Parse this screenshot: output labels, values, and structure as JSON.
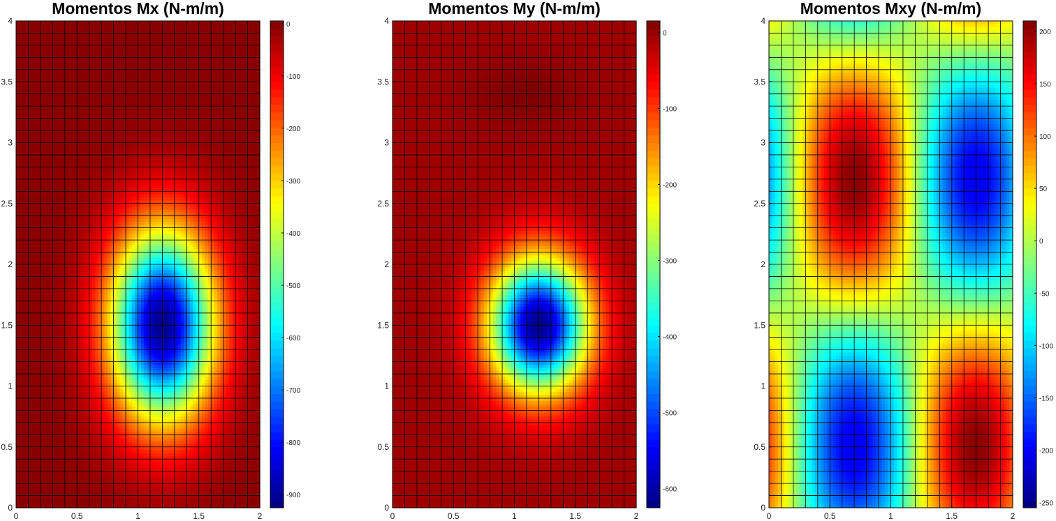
{
  "chart_data": [
    {
      "type": "heatmap",
      "title": "Momentos Mx (N-m/m)",
      "colormap": "jet",
      "x_range": [
        0,
        2
      ],
      "y_range": [
        0,
        4
      ],
      "x_ticks": [
        "0",
        "0.5",
        "1",
        "1.5",
        "2"
      ],
      "y_ticks": [
        "0",
        "0.5",
        "1",
        "1.5",
        "2",
        "2.5",
        "3",
        "3.5",
        "4"
      ],
      "mesh": {
        "nx": 20,
        "ny": 40,
        "color": "#000000"
      },
      "field": {
        "kind": "peak",
        "cx": 1.2,
        "cy": 1.5,
        "sx": 0.42,
        "sy": 0.78,
        "floor": -5,
        "peak": -915
      },
      "colorbar": {
        "min": -925,
        "max": 5,
        "ticks": [
          0,
          -100,
          -200,
          -300,
          -400,
          -500,
          -600,
          -700,
          -800,
          -900
        ],
        "tick_labels": [
          "0",
          "-100",
          "-200",
          "-300",
          "-400",
          "-500",
          "-600",
          "-700",
          "-800",
          "-900"
        ]
      }
    },
    {
      "type": "heatmap",
      "title": "Momentos My (N-m/m)",
      "colormap": "jet",
      "x_range": [
        0,
        2
      ],
      "y_range": [
        0,
        4
      ],
      "x_ticks": [
        "0",
        "0.5",
        "1",
        "1.5",
        "2"
      ],
      "y_ticks": [
        "0",
        "0.5",
        "1",
        "1.5",
        "2",
        "2.5",
        "3",
        "3.5",
        "4"
      ],
      "mesh": {
        "nx": 20,
        "ny": 40,
        "color": "#000000"
      },
      "field": {
        "kind": "peak",
        "cx": 1.2,
        "cy": 1.5,
        "sx": 0.4,
        "sy": 0.55,
        "floor": -5,
        "peak": -620,
        "bump": {
          "cx": 1.1,
          "cy": 3.4,
          "sx": 0.45,
          "sy": 0.3,
          "amp": 20
        }
      },
      "colorbar": {
        "min": -625,
        "max": 15,
        "ticks": [
          0,
          -100,
          -200,
          -300,
          -400,
          -500,
          -600
        ],
        "tick_labels": [
          "0",
          "-100",
          "-200",
          "-300",
          "-400",
          "-500",
          "-600"
        ]
      }
    },
    {
      "type": "heatmap",
      "title": "Momentos Mxy (N-m/m)",
      "colormap": "jet",
      "x_range": [
        0,
        2
      ],
      "y_range": [
        0,
        4
      ],
      "x_ticks": [
        "0",
        "0.5",
        "1",
        "1.5",
        "2"
      ],
      "y_ticks": [
        "0",
        "0.5",
        "1",
        "1.5",
        "2",
        "2.5",
        "3",
        "3.5",
        "4"
      ],
      "mesh": {
        "nx": 20,
        "ny": 40,
        "color": "#000000"
      },
      "field": {
        "kind": "twist",
        "cx": 1.2,
        "cy": 1.6,
        "amp": 205
      },
      "colorbar": {
        "min": -255,
        "max": 210,
        "ticks": [
          200,
          150,
          100,
          50,
          0,
          -50,
          -100,
          -150,
          -200,
          -250
        ],
        "tick_labels": [
          "200",
          "150",
          "100",
          "50",
          "0",
          "-50",
          "-100",
          "-150",
          "-200",
          "-250"
        ]
      }
    }
  ]
}
